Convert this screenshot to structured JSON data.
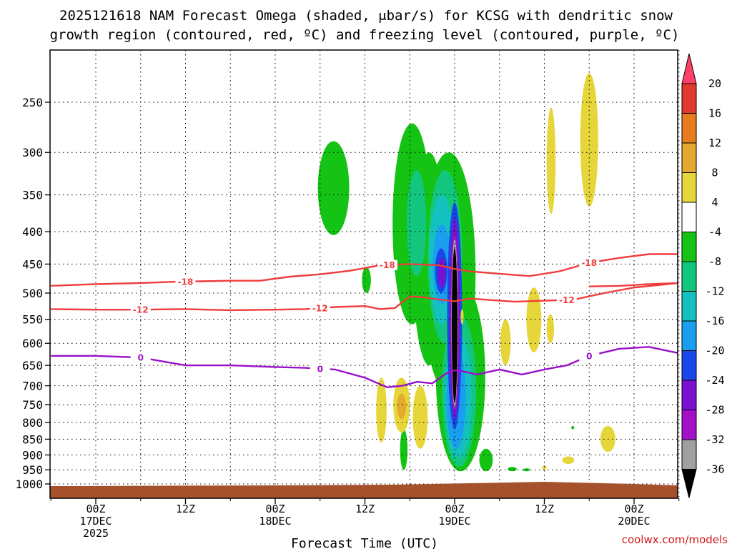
{
  "chart_data": {
    "type": "time-height cross section (shaded contour)",
    "title_line1": "2025121618 NAM Forecast Omega (shaded, μbar/s) for KCSG with dendritic snow",
    "title_line2": "growth region (contoured, red, ºC) and freezing level (contoured, purple, ºC)",
    "xlabel": "Forecast Time (UTC)",
    "ylabel": "",
    "x_ticks": [
      {
        "h": 0,
        "l1": "00Z",
        "l2": "17DEC",
        "l3": "2025"
      },
      {
        "h": 12,
        "l1": "12Z",
        "l2": "",
        "l3": ""
      },
      {
        "h": 24,
        "l1": "00Z",
        "l2": "18DEC",
        "l3": ""
      },
      {
        "h": 36,
        "l1": "12Z",
        "l2": "",
        "l3": ""
      },
      {
        "h": 48,
        "l1": "00Z",
        "l2": "19DEC",
        "l3": ""
      },
      {
        "h": 60,
        "l1": "12Z",
        "l2": "",
        "l3": ""
      },
      {
        "h": 72,
        "l1": "00Z",
        "l2": "20DEC",
        "l3": ""
      }
    ],
    "x_range_hours": [
      -6,
      78
    ],
    "y_ticks_mb": [
      250,
      300,
      350,
      400,
      450,
      500,
      550,
      600,
      650,
      700,
      750,
      800,
      850,
      900,
      950,
      1000
    ],
    "y_range_mb": [
      200,
      1020
    ],
    "grid": true,
    "colorbar": {
      "labels": [
        "20",
        "16",
        "12",
        "8",
        "4",
        "-4",
        "-8",
        "-12",
        "-16",
        "-20",
        "-24",
        "-28",
        "-32",
        "-36"
      ],
      "levels": [
        24,
        20,
        16,
        12,
        8,
        4,
        -4,
        -8,
        -12,
        -16,
        -20,
        -24,
        -28,
        -32,
        -36,
        -40
      ],
      "colors": [
        "#ff4068",
        "#e03a30",
        "#e87c1e",
        "#e4a92e",
        "#e6d63a",
        "#ffffff",
        "#14c314",
        "#12c77d",
        "#14c1c1",
        "#1a9ef0",
        "#1a48e8",
        "#7a10d0",
        "#a410c8",
        "#a0a0a0",
        "#000000"
      ]
    },
    "omega_features": [
      {
        "label": "upward motion core",
        "hour": 48,
        "p_top": 400,
        "p_bottom": 760,
        "omega": -36
      },
      {
        "label": "dark core",
        "hour": 48,
        "p_top": 430,
        "p_bottom": 740,
        "omega": -40
      },
      {
        "label": "sinking pocket",
        "hour": 41,
        "p_top": 690,
        "p_bottom": 800,
        "omega": 10
      }
    ],
    "contours": [
      {
        "name": "dendritic-upper",
        "value": -18,
        "label": "-18",
        "color": "#f03c3c",
        "hours": [
          -6,
          0,
          6,
          10,
          14,
          18,
          22,
          26,
          30,
          34,
          38,
          42,
          46,
          48,
          50,
          54,
          58,
          62,
          66,
          70,
          74,
          78
        ],
        "pressure_mb": [
          487,
          484,
          482,
          480,
          479,
          478,
          478,
          471,
          467,
          461,
          452,
          450,
          452,
          458,
          462,
          466,
          470,
          462,
          448,
          440,
          434,
          434
        ]
      },
      {
        "name": "dendritic-upper-b",
        "value": -18,
        "label": "",
        "color": "#f03c3c",
        "hours": [
          66,
          70,
          74,
          78
        ],
        "pressure_mb": [
          488,
          487,
          484,
          482
        ]
      },
      {
        "name": "dendritic-lower",
        "value": -12,
        "label": "-12",
        "color": "#f03c3c",
        "hours": [
          -6,
          0,
          6,
          12,
          18,
          24,
          28,
          32,
          36,
          38,
          40,
          42,
          44,
          46,
          48,
          50,
          52,
          56,
          60,
          64,
          68,
          72,
          78
        ],
        "pressure_mb": [
          530,
          531,
          531,
          530,
          532,
          531,
          530,
          526,
          524,
          530,
          528,
          506,
          508,
          512,
          515,
          510,
          512,
          516,
          514,
          512,
          500,
          490,
          482
        ]
      },
      {
        "name": "freezing-level",
        "value": 0,
        "label": "0",
        "color": "#9a10c8",
        "hours": [
          -6,
          0,
          6,
          12,
          18,
          24,
          28,
          32,
          36,
          39,
          41,
          43,
          45,
          47,
          48,
          49,
          51,
          54,
          57,
          60,
          63,
          66,
          70,
          74,
          78
        ],
        "pressure_mb": [
          628,
          628,
          632,
          650,
          650,
          654,
          656,
          660,
          680,
          704,
          700,
          690,
          694,
          668,
          662,
          664,
          672,
          660,
          672,
          660,
          650,
          628,
          612,
          608,
          622
        ]
      }
    ]
  },
  "credit": "coolwx.com/models"
}
